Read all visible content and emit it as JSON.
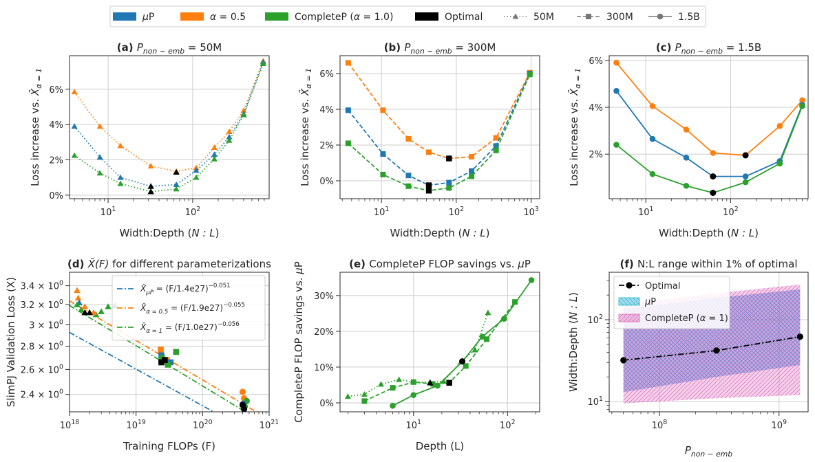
{
  "colors": {
    "mup": "#1f77b4",
    "alpha05": "#ff7f0e",
    "completep": "#2ca02c",
    "optimal": "#000000",
    "grid": "#cccccc",
    "axis": "#262626"
  },
  "legend": {
    "items": [
      {
        "key": "mup",
        "label": "μP",
        "kind": "patch"
      },
      {
        "key": "alpha05",
        "label": "α = 0.5",
        "kind": "patch"
      },
      {
        "key": "completep",
        "label": "CompleteP (α = 1.0)",
        "kind": "patch"
      },
      {
        "key": "optimal",
        "label": "Optimal",
        "kind": "patch"
      },
      {
        "key": "s50",
        "label": "50M",
        "kind": "dotted",
        "marker": "triangle"
      },
      {
        "key": "s300",
        "label": "300M",
        "kind": "dashed",
        "marker": "square"
      },
      {
        "key": "s15",
        "label": "1.5B",
        "kind": "solid",
        "marker": "circle"
      }
    ]
  },
  "chart_data": [
    {
      "id": "a",
      "type": "line",
      "title_prefix": "(a)",
      "title": "P_non-emb = 50M",
      "xlabel": "Width:Depth (N : L)",
      "ylabel": "Loss increase vs. X̂_α=1",
      "xscale": "log",
      "xlim": [
        3.5,
        800
      ],
      "ylim": [
        -0.2,
        7.9
      ],
      "xticks": [
        {
          "v": 10,
          "label": "10^1"
        },
        {
          "v": 100,
          "label": "10^2"
        }
      ],
      "yticks": [
        {
          "v": 0,
          "label": "0%"
        },
        {
          "v": 2,
          "label": "2%"
        },
        {
          "v": 4,
          "label": "4%"
        },
        {
          "v": 6,
          "label": "6%"
        }
      ],
      "series": [
        {
          "name": "α = 0.5",
          "color": "alpha05",
          "dash": "dotted",
          "marker": "triangle",
          "x": [
            4,
            8,
            14,
            32,
            64,
            110,
            180,
            270,
            400,
            680
          ],
          "y": [
            5.85,
            3.9,
            2.8,
            1.65,
            1.35,
            1.55,
            2.7,
            3.6,
            4.8,
            7.6
          ]
        },
        {
          "name": "μP",
          "color": "mup",
          "dash": "dotted",
          "marker": "triangle",
          "x": [
            4,
            8,
            14,
            32,
            64,
            110,
            180,
            270,
            400,
            680
          ],
          "y": [
            3.9,
            2.15,
            1.0,
            0.5,
            0.6,
            1.4,
            2.3,
            3.3,
            4.6,
            7.55
          ]
        },
        {
          "name": "CompleteP (α = 1.0)",
          "color": "completep",
          "dash": "dotted",
          "marker": "triangle",
          "x": [
            4,
            8,
            14,
            32,
            64,
            110,
            180,
            270,
            400,
            680
          ],
          "y": [
            2.25,
            1.25,
            0.65,
            0.2,
            0.35,
            1.0,
            2.05,
            3.1,
            4.55,
            7.45
          ]
        }
      ],
      "optimal": {
        "marker": "triangle",
        "x": [
          32,
          32,
          64
        ],
        "y": [
          0.5,
          0.2,
          1.3
        ]
      }
    },
    {
      "id": "b",
      "type": "line",
      "title_prefix": "(b)",
      "title": "P_non-emb = 300M",
      "xlabel": "Width:Depth (N : L)",
      "ylabel": "Loss increase vs. X̂_α=1",
      "xscale": "log",
      "xlim": [
        2.8,
        1300
      ],
      "ylim": [
        -1.0,
        7.0
      ],
      "xticks": [
        {
          "v": 10,
          "label": "10^1"
        },
        {
          "v": 100,
          "label": "10^2"
        },
        {
          "v": 1000,
          "label": "10^3"
        }
      ],
      "yticks": [
        {
          "v": 0,
          "label": "0%"
        },
        {
          "v": 2,
          "label": "2%"
        },
        {
          "v": 4,
          "label": "4%"
        },
        {
          "v": 6,
          "label": "6%"
        }
      ],
      "series": [
        {
          "name": "α = 0.5",
          "color": "alpha05",
          "dash": "dashed",
          "marker": "square",
          "x": [
            3.6,
            10.5,
            23,
            43,
            80,
            160,
            340,
            960
          ],
          "y": [
            6.6,
            3.95,
            2.35,
            1.6,
            1.25,
            1.35,
            2.4,
            6.05
          ]
        },
        {
          "name": "μP",
          "color": "mup",
          "dash": "dashed",
          "marker": "square",
          "x": [
            3.6,
            10.5,
            23,
            43,
            80,
            160,
            340,
            960
          ],
          "y": [
            3.95,
            1.5,
            0.3,
            -0.25,
            -0.1,
            0.55,
            1.95,
            6.0
          ]
        },
        {
          "name": "CompleteP (α = 1.0)",
          "color": "completep",
          "dash": "dashed",
          "marker": "square",
          "x": [
            3.6,
            10.5,
            23,
            43,
            80,
            160,
            340,
            960
          ],
          "y": [
            2.1,
            0.35,
            -0.3,
            -0.55,
            -0.4,
            0.25,
            1.7,
            5.95
          ]
        }
      ],
      "optimal": {
        "marker": "square",
        "x": [
          43,
          43,
          80
        ],
        "y": [
          -0.25,
          -0.55,
          1.25
        ]
      }
    },
    {
      "id": "c",
      "type": "line",
      "title_prefix": "(c)",
      "title": "P_non-emb = 1.5B",
      "xlabel": "Width:Depth (N : L)",
      "ylabel": "Loss increase vs. X̂_α=1",
      "xscale": "log",
      "xlim": [
        3.7,
        820
      ],
      "ylim": [
        0.1,
        6.2
      ],
      "xticks": [
        {
          "v": 10,
          "label": "10^1"
        },
        {
          "v": 100,
          "label": "10^2"
        }
      ],
      "yticks": [
        {
          "v": 2,
          "label": "2%"
        },
        {
          "v": 4,
          "label": "4%"
        },
        {
          "v": 6,
          "label": "6%"
        }
      ],
      "series": [
        {
          "name": "α = 0.5",
          "color": "alpha05",
          "dash": "solid",
          "marker": "circle",
          "x": [
            4.5,
            12,
            30,
            62,
            150,
            380,
            700
          ],
          "y": [
            5.9,
            4.05,
            3.05,
            2.05,
            1.95,
            3.2,
            4.3
          ]
        },
        {
          "name": "μP",
          "color": "mup",
          "dash": "solid",
          "marker": "circle",
          "x": [
            4.5,
            12,
            30,
            62,
            150,
            380,
            700
          ],
          "y": [
            4.7,
            2.65,
            1.85,
            1.05,
            1.05,
            1.7,
            4.1
          ]
        },
        {
          "name": "CompleteP (α = 1.0)",
          "color": "completep",
          "dash": "solid",
          "marker": "circle",
          "x": [
            4.5,
            12,
            30,
            62,
            150,
            380,
            700
          ],
          "y": [
            2.4,
            1.15,
            0.65,
            0.35,
            0.8,
            1.6,
            4.05
          ]
        }
      ],
      "optimal": {
        "marker": "circle",
        "x": [
          62,
          62,
          150
        ],
        "y": [
          1.05,
          0.35,
          1.95
        ]
      }
    },
    {
      "id": "d",
      "type": "scatter",
      "title_prefix": "(d)",
      "title": "X̂(F) for different parameterizations",
      "xlabel": "Training FLOPs (F)",
      "ylabel": "SlimPJ Validation Loss (X)",
      "xscale": "log",
      "yscale": "log",
      "xlim": [
        1e+18,
        1e+21
      ],
      "ylim": [
        2.27,
        3.55
      ],
      "xticks": [
        {
          "v": 1e+18,
          "label": "10^18"
        },
        {
          "v": 1e+19,
          "label": "10^19"
        },
        {
          "v": 1e+20,
          "label": "10^20"
        },
        {
          "v": 1e+21,
          "label": "10^21"
        }
      ],
      "yticks": [
        {
          "v": 2.4,
          "label": "2.4 × 10^0"
        },
        {
          "v": 2.6,
          "label": "2.6 × 10^0"
        },
        {
          "v": 2.8,
          "label": "2.8 × 10^0"
        },
        {
          "v": 3.0,
          "label": "3 × 10^0"
        },
        {
          "v": 3.2,
          "label": "3.2 × 10^0"
        },
        {
          "v": 3.4,
          "label": "3.4 × 10^0"
        }
      ],
      "fits": [
        {
          "color": "mup",
          "label": "X̂_μP = (F/1.4e27)^-0.051",
          "prefix": "X̂",
          "sub": "μP",
          "mid": " = (F/1.4e27)",
          "exp": "−0.051",
          "C": 1.4e+27,
          "b": -0.051
        },
        {
          "color": "alpha05",
          "label": "X̂_α=0.5 = (F/1.9e27)^-0.055",
          "prefix": "X̂",
          "sub": "α = 0.5",
          "mid": " = (F/1.9e27)",
          "exp": "−0.055",
          "C": 1.9e+27,
          "b": -0.055
        },
        {
          "color": "completep",
          "label": "X̂_α=1 = (F/1.0e27)^-0.056",
          "prefix": "X̂",
          "sub": "α = 1",
          "mid": " = (F/1.0e27)",
          "exp": "−0.056",
          "C": 1e+27,
          "b": -0.056
        }
      ],
      "points": [
        {
          "color": "alpha05",
          "marker": "triangle",
          "x": 1.3e+18,
          "y": 3.35
        },
        {
          "color": "alpha05",
          "marker": "triangle",
          "x": 1.35e+18,
          "y": 3.27
        },
        {
          "color": "mup",
          "marker": "triangle",
          "x": 1.4e+18,
          "y": 3.22
        },
        {
          "color": "completep",
          "marker": "triangle",
          "x": 1.3e+18,
          "y": 3.2
        },
        {
          "color": "completep",
          "marker": "triangle",
          "x": 1.5e+18,
          "y": 3.15
        },
        {
          "color": "alpha05",
          "marker": "triangle",
          "x": 1.7e+18,
          "y": 3.18
        },
        {
          "color": "completep",
          "marker": "triangle",
          "x": 2e+18,
          "y": 3.12
        },
        {
          "color": "completep",
          "marker": "triangle",
          "x": 2.5e+18,
          "y": 3.1
        },
        {
          "color": "alpha05",
          "marker": "triangle",
          "x": 2.3e+18,
          "y": 3.12
        },
        {
          "color": "completep",
          "marker": "triangle",
          "x": 3e+18,
          "y": 3.13
        },
        {
          "color": "completep",
          "marker": "triangle",
          "x": 3.8e+18,
          "y": 3.18
        },
        {
          "color": "mup",
          "marker": "triangle",
          "x": 4.8e+18,
          "y": 3.19
        },
        {
          "color": "optimal",
          "marker": "triangle",
          "x": 1.7e+18,
          "y": 3.12
        },
        {
          "color": "optimal",
          "marker": "triangle",
          "x": 2e+18,
          "y": 3.12
        },
        {
          "color": "alpha05",
          "marker": "square",
          "x": 2.35e+19,
          "y": 2.77
        },
        {
          "color": "mup",
          "marker": "square",
          "x": 2.4e+19,
          "y": 2.72
        },
        {
          "color": "completep",
          "marker": "square",
          "x": 2.45e+19,
          "y": 2.7
        },
        {
          "color": "alpha05",
          "marker": "square",
          "x": 2.9e+19,
          "y": 2.68
        },
        {
          "color": "mup",
          "marker": "square",
          "x": 3.3e+19,
          "y": 2.66
        },
        {
          "color": "completep",
          "marker": "square",
          "x": 3e+19,
          "y": 2.64
        },
        {
          "color": "completep",
          "marker": "square",
          "x": 4e+19,
          "y": 2.75
        },
        {
          "color": "optimal",
          "marker": "square",
          "x": 2.4e+19,
          "y": 2.66
        },
        {
          "color": "optimal",
          "marker": "square",
          "x": 2.7e+19,
          "y": 2.68
        },
        {
          "color": "alpha05",
          "marker": "circle",
          "x": 4e+20,
          "y": 2.42
        },
        {
          "color": "alpha05",
          "marker": "circle",
          "x": 4.2e+20,
          "y": 2.37
        },
        {
          "color": "completep",
          "marker": "circle",
          "x": 4.6e+20,
          "y": 2.35
        },
        {
          "color": "mup",
          "marker": "circle",
          "x": 4.1e+20,
          "y": 2.33
        },
        {
          "color": "completep",
          "marker": "circle",
          "x": 4.3e+20,
          "y": 2.31
        },
        {
          "color": "optimal",
          "marker": "circle",
          "x": 4e+20,
          "y": 2.32
        },
        {
          "color": "optimal",
          "marker": "circle",
          "x": 4.2e+20,
          "y": 2.29
        }
      ]
    },
    {
      "id": "e",
      "type": "line",
      "title_prefix": "(e)",
      "title": "CompleteP FLOP savings vs. μP",
      "xlabel": "Depth (L)",
      "ylabel": "CompleteP FLOP savings vs. μP",
      "xscale": "log",
      "xlim": [
        1.65,
        220
      ],
      "ylim": [
        -2.5,
        36.5
      ],
      "xticks": [
        {
          "v": 10,
          "label": "10^1"
        },
        {
          "v": 100,
          "label": "10^2"
        }
      ],
      "yticks": [
        {
          "v": 0,
          "label": "0%"
        },
        {
          "v": 10,
          "label": "10%"
        },
        {
          "v": 20,
          "label": "20%"
        },
        {
          "v": 30,
          "label": "30%"
        }
      ],
      "series": [
        {
          "name": "50M",
          "color": "completep",
          "dash": "dotted",
          "marker": "triangle",
          "x": [
            2,
            3,
            4.5,
            7,
            10,
            15,
            21,
            32,
            45,
            62
          ],
          "y": [
            1.8,
            2.4,
            5.2,
            6.5,
            5.8,
            5.8,
            6.0,
            11.5,
            14.8,
            25.2
          ]
        },
        {
          "name": "300M",
          "color": "completep",
          "dash": "dashed",
          "marker": "square",
          "x": [
            3,
            6,
            10,
            16,
            24,
            36,
            60,
            120
          ],
          "y": [
            0.5,
            4.2,
            5.8,
            5.3,
            5.6,
            10.3,
            17.8,
            28.2
          ]
        },
        {
          "name": "1.5B",
          "color": "completep",
          "dash": "solid",
          "marker": "circle",
          "x": [
            6,
            10,
            18,
            33,
            54,
            92,
            180
          ],
          "y": [
            -0.8,
            2.2,
            4.8,
            11.5,
            18.5,
            23.5,
            34.3
          ]
        }
      ],
      "optimal": {
        "marker": "mixed",
        "points": [
          {
            "x": 15,
            "y": 5.6,
            "m": "triangle"
          },
          {
            "x": 24,
            "y": 5.6,
            "m": "square"
          },
          {
            "x": 33,
            "y": 11.6,
            "m": "circle"
          }
        ]
      }
    },
    {
      "id": "f",
      "type": "area",
      "title_prefix": "(f)",
      "title": "N:L range within 1% of optimal",
      "xlabel": "P_non-emb",
      "ylabel": "Width:Depth (N : L)",
      "xscale": "log",
      "yscale": "log",
      "xlim": [
        38000000.0,
        1750000000.0
      ],
      "ylim": [
        7.5,
        380
      ],
      "xticks": [
        {
          "v": 100000000.0,
          "label": "10^8"
        },
        {
          "v": 1000000000.0,
          "label": "10^9"
        }
      ],
      "yticks": [
        {
          "v": 10,
          "label": "10^1"
        },
        {
          "v": 100,
          "label": "10^2"
        }
      ],
      "legend_labels": {
        "optimal": "Optimal",
        "mup": "μP",
        "completep": "CompleteP (α = 1)"
      },
      "mup_band": {
        "x": [
          50000000.0,
          300000000.0,
          1500000000.0
        ],
        "lo": [
          13,
          20,
          28
        ],
        "hi": [
          135,
          185,
          235
        ]
      },
      "completep_band": {
        "x": [
          50000000.0,
          300000000.0,
          1500000000.0
        ],
        "lo": [
          9.5,
          11,
          12
        ],
        "hi": [
          155,
          210,
          270
        ]
      },
      "optimal_line": {
        "x": [
          50000000.0,
          300000000.0,
          1500000000.0
        ],
        "y": [
          32,
          42,
          62
        ]
      }
    }
  ]
}
